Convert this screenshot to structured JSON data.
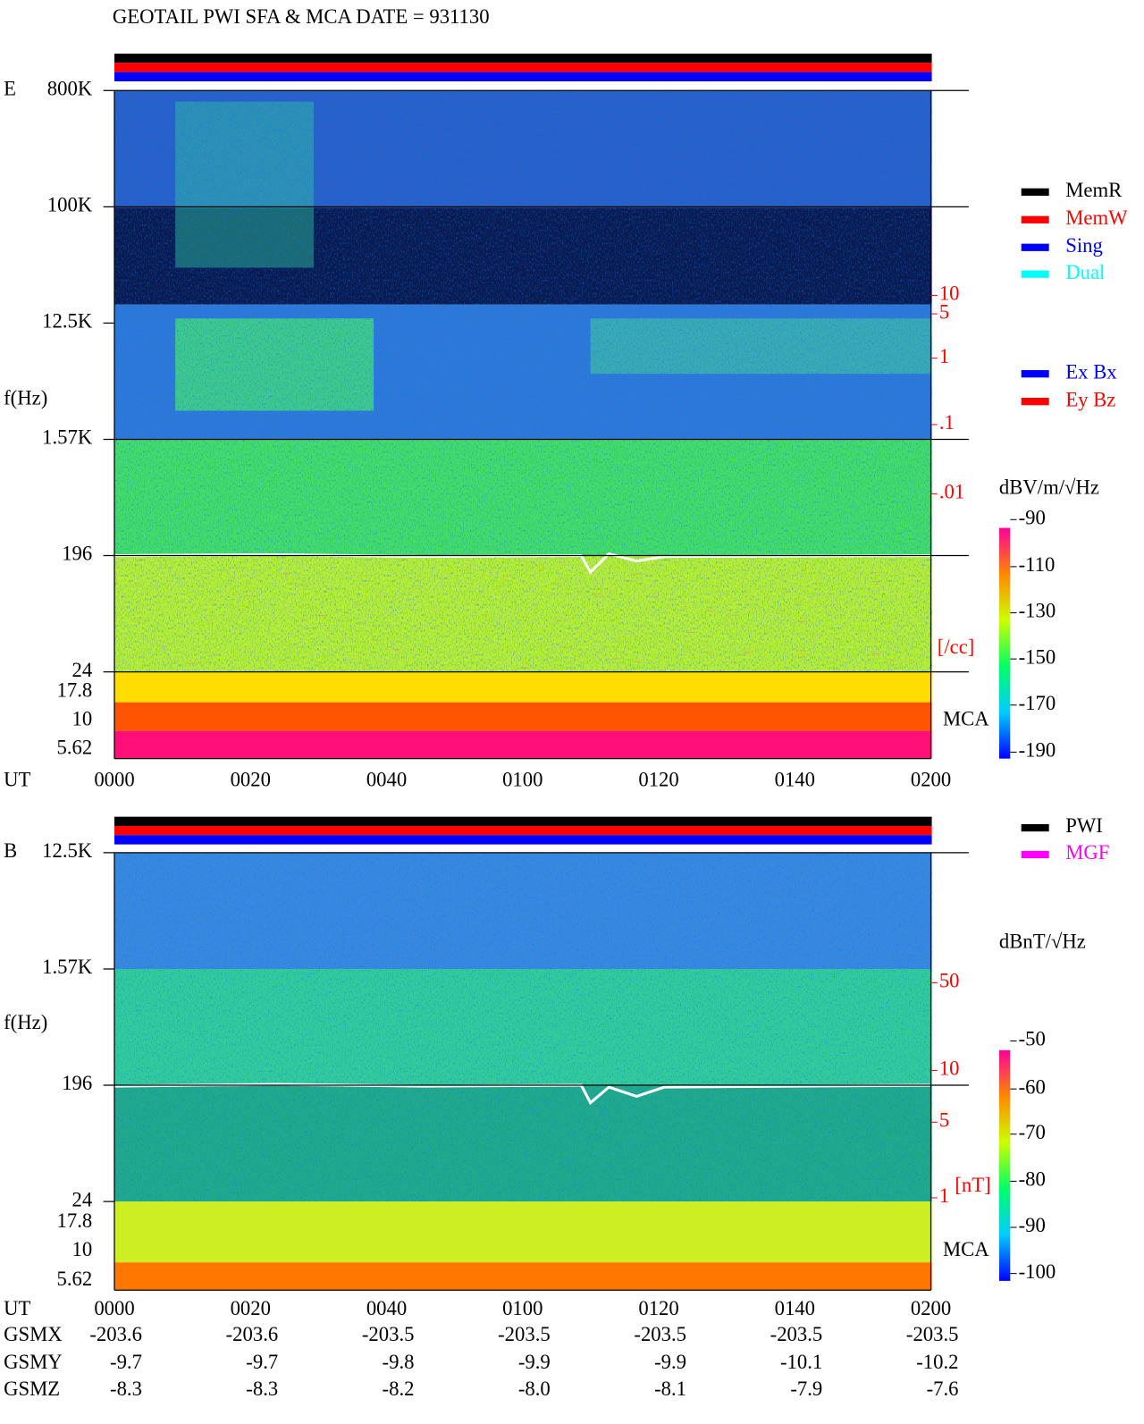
{
  "header": {
    "title": "GEOTAIL  PWI SFA & MCA   DATE = 931130"
  },
  "e_panel": {
    "label": "E",
    "freq_label": "f(Hz)",
    "freq_ticks": [
      "800K",
      "100K",
      "12.5K",
      "1.57K",
      "196",
      "24"
    ],
    "mca_ticks": [
      "17.8",
      "10",
      "5.62"
    ],
    "mca_label": "MCA",
    "density_ticks": [
      "10",
      "5",
      "1",
      ".1",
      ".01"
    ],
    "density_unit": "[/cc]",
    "time_label": "UT",
    "time_ticks": [
      "0000",
      "0020",
      "0040",
      "0100",
      "0120",
      "0140",
      "0200"
    ],
    "legend_mode": [
      {
        "label": "MemR",
        "color": "#000000"
      },
      {
        "label": "MemW",
        "color": "#ff0000"
      },
      {
        "label": "Sing",
        "color": "#0000ff"
      },
      {
        "label": "Dual",
        "color": "#00ffff"
      }
    ],
    "legend_component": [
      {
        "label": "Ex Bx",
        "color": "#0000ff"
      },
      {
        "label": "Ey Bz",
        "color": "#ff0000"
      }
    ],
    "colorbar_unit": "dBV/m/√Hz",
    "colorbar_ticks": [
      "-90",
      "-110",
      "-130",
      "-150",
      "-170",
      "-190"
    ]
  },
  "b_panel": {
    "label": "B",
    "freq_label": "f(Hz)",
    "freq_ticks": [
      "12.5K",
      "1.57K",
      "196",
      "24"
    ],
    "mca_ticks": [
      "17.8",
      "10",
      "5.62"
    ],
    "mca_label": "MCA",
    "density_ticks": [
      "50",
      "10",
      "5",
      "1"
    ],
    "density_unit": "[nT]",
    "time_label": "UT",
    "time_ticks": [
      "0000",
      "0020",
      "0040",
      "0100",
      "0120",
      "0140",
      "0200"
    ],
    "legend_source": [
      {
        "label": "PWI",
        "color": "#000000"
      },
      {
        "label": "MGF",
        "color": "#ff00ff"
      }
    ],
    "colorbar_unit": "dBnT/√Hz",
    "colorbar_ticks": [
      "-50",
      "-60",
      "-70",
      "-80",
      "-90",
      "-100"
    ]
  },
  "orbit": {
    "rows": [
      {
        "label": "GSMX",
        "values": [
          "-203.6",
          "-203.6",
          "-203.5",
          "-203.5",
          "-203.5",
          "-203.5",
          "-203.5"
        ]
      },
      {
        "label": "GSMY",
        "values": [
          "-9.7",
          "-9.7",
          "-9.8",
          "-9.9",
          "-9.9",
          "-10.1",
          "-10.2"
        ]
      },
      {
        "label": "GSMZ",
        "values": [
          "-8.3",
          "-8.3",
          "-8.2",
          "-8.0",
          "-8.1",
          "-7.9",
          "-7.6"
        ]
      }
    ]
  }
}
